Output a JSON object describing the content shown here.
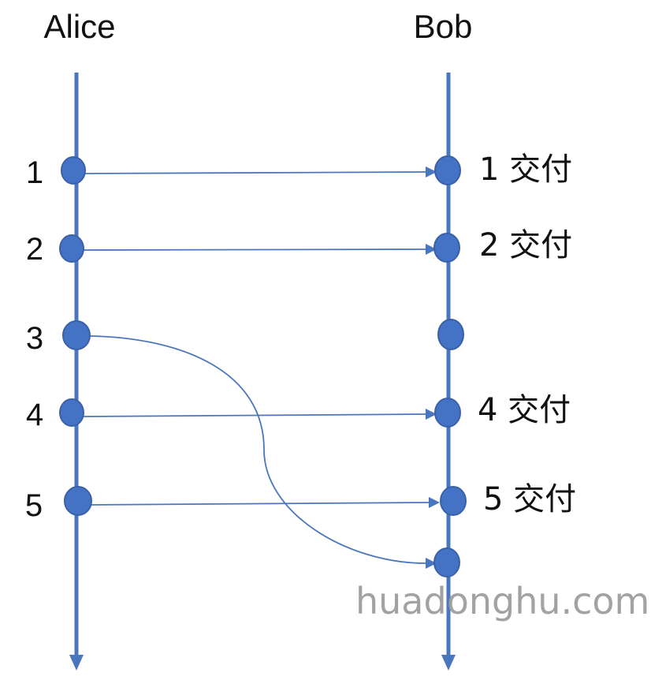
{
  "actors": {
    "sender": "Alice",
    "receiver": "Bob"
  },
  "steps": [
    {
      "label": "1",
      "bob_label": "1 交付"
    },
    {
      "label": "2",
      "bob_label": "2 交付"
    },
    {
      "label": "3",
      "bob_label": ""
    },
    {
      "label": "4",
      "bob_label": "4 交付"
    },
    {
      "label": "5",
      "bob_label": "5 交付"
    }
  ],
  "watermark": "huadonghu.com",
  "colors": {
    "lifeline": "#4a76be",
    "dot": "#4472c4"
  }
}
